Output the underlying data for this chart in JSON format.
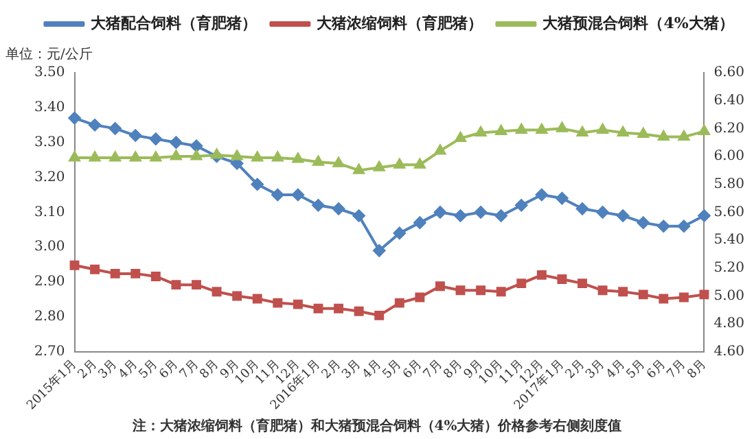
{
  "chart_data": {
    "type": "line",
    "ylabel": "单位：元/公斤",
    "annotations": [
      "注：大猪浓缩饲料（育肥猪）和大猪预混合饲料（4%大猪）价格参考右侧刻度值"
    ],
    "categories": [
      "2015年1月",
      "2月",
      "3月",
      "4月",
      "5月",
      "6月",
      "7月",
      "8月",
      "9月",
      "10月",
      "11月",
      "12月",
      "2016年1月",
      "2月",
      "3月",
      "4月",
      "5月",
      "6月",
      "7月",
      "8月",
      "9月",
      "10月",
      "11月",
      "12月",
      "2017年1月",
      "2月",
      "3月",
      "4月",
      "5月",
      "6月",
      "7月",
      "8月"
    ],
    "series": [
      {
        "name": "大猪配合饲料（育肥猪）",
        "color": "#4f81bd",
        "marker": "diamond",
        "values": [
          3.37,
          3.35,
          3.34,
          3.32,
          3.31,
          3.3,
          3.29,
          3.26,
          3.24,
          3.18,
          3.15,
          3.15,
          3.12,
          3.11,
          3.09,
          2.99,
          3.04,
          3.07,
          3.1,
          3.09,
          3.1,
          3.09,
          3.12,
          3.15,
          3.14,
          3.11,
          3.1,
          3.09,
          3.07,
          3.06,
          3.06,
          3.09
        ]
      },
      {
        "name": "大猪浓缩饲料（育肥猪）",
        "color": "#c0504d",
        "marker": "square",
        "axis": "y2",
        "values": [
          5.22,
          5.19,
          5.16,
          5.16,
          5.14,
          5.08,
          5.08,
          5.03,
          5.0,
          4.98,
          4.95,
          4.94,
          4.91,
          4.91,
          4.89,
          4.86,
          4.95,
          4.99,
          5.07,
          5.04,
          5.04,
          5.03,
          5.09,
          5.15,
          5.12,
          5.09,
          5.04,
          5.03,
          5.01,
          4.98,
          4.99,
          5.01
        ]
      },
      {
        "name": "大猪预混合饲料（4%大猪）",
        "color": "#9bbb59",
        "marker": "triangle",
        "axis": "y2",
        "values": [
          5.99,
          5.99,
          5.99,
          5.99,
          5.99,
          6.0,
          6.0,
          6.01,
          6.0,
          5.99,
          5.99,
          5.98,
          5.96,
          5.95,
          5.9,
          5.92,
          5.94,
          5.94,
          6.04,
          6.13,
          6.17,
          6.18,
          6.19,
          6.19,
          6.2,
          6.17,
          6.19,
          6.17,
          6.16,
          6.14,
          6.14,
          6.18
        ]
      }
    ],
    "ylim": [
      2.7,
      3.5
    ],
    "yticks": [
      {
        "value": 2.7,
        "label": "2.70"
      },
      {
        "value": 2.8,
        "label": "2.80"
      },
      {
        "value": 2.9,
        "label": "2.90"
      },
      {
        "value": 3.0,
        "label": "3.00"
      },
      {
        "value": 3.1,
        "label": "3.10"
      },
      {
        "value": 3.2,
        "label": "3.20"
      },
      {
        "value": 3.3,
        "label": "3.30"
      },
      {
        "value": 3.4,
        "label": "3.40"
      },
      {
        "value": 3.5,
        "label": "3.50"
      }
    ],
    "y2lim": [
      4.6,
      6.6
    ],
    "y2ticks": [
      {
        "value": 4.6,
        "label": "4.60"
      },
      {
        "value": 4.8,
        "label": "4.80"
      },
      {
        "value": 5.0,
        "label": "5.00"
      },
      {
        "value": 5.2,
        "label": "5.20"
      },
      {
        "value": 5.4,
        "label": "5.40"
      },
      {
        "value": 5.6,
        "label": "5.60"
      },
      {
        "value": 5.8,
        "label": "5.80"
      },
      {
        "value": 6.0,
        "label": "6.00"
      },
      {
        "value": 6.2,
        "label": "6.20"
      },
      {
        "value": 6.4,
        "label": "6.40"
      },
      {
        "value": 6.6,
        "label": "6.60"
      }
    ],
    "legend": "top",
    "grid": false,
    "line_style": "solid"
  }
}
